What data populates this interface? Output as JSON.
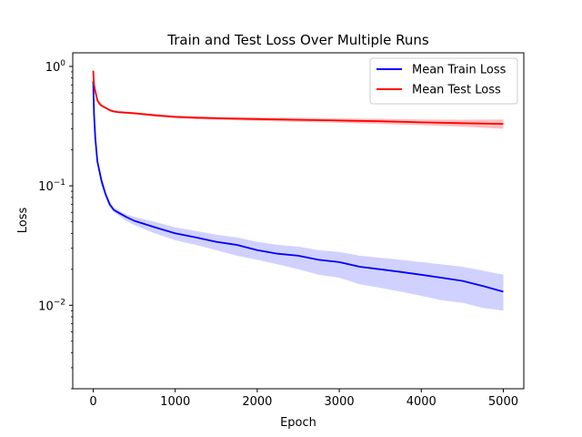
{
  "chart_data": {
    "type": "line",
    "title": "Train and Test Loss Over Multiple Runs",
    "xlabel": "Epoch",
    "ylabel": "Loss",
    "xlim": [
      -250,
      5250
    ],
    "ylim": [
      0.002,
      1.3
    ],
    "yscale": "log",
    "grid": false,
    "legend_position": "top-right",
    "x_ticks": [
      0,
      1000,
      2000,
      3000,
      4000,
      5000
    ],
    "y_ticks": [
      {
        "value": 0.01,
        "label": "10",
        "exp": "−2"
      },
      {
        "value": 0.1,
        "label": "10",
        "exp": "−1"
      },
      {
        "value": 1,
        "label": "10",
        "exp": "0"
      }
    ],
    "series": [
      {
        "name": "Mean Train Loss",
        "color": "#0000ff",
        "x": [
          0,
          10,
          25,
          50,
          100,
          150,
          200,
          250,
          300,
          400,
          500,
          750,
          1000,
          1250,
          1500,
          1750,
          2000,
          2250,
          2500,
          2750,
          3000,
          3250,
          3500,
          3750,
          4000,
          4250,
          4500,
          4750,
          5000
        ],
        "y": [
          0.75,
          0.4,
          0.25,
          0.16,
          0.11,
          0.085,
          0.07,
          0.063,
          0.06,
          0.055,
          0.051,
          0.045,
          0.04,
          0.037,
          0.034,
          0.032,
          0.029,
          0.027,
          0.026,
          0.024,
          0.023,
          0.021,
          0.02,
          0.019,
          0.018,
          0.017,
          0.016,
          0.0145,
          0.013
        ],
        "band_lower": [
          0.7,
          0.37,
          0.23,
          0.15,
          0.1,
          0.08,
          0.066,
          0.06,
          0.057,
          0.051,
          0.047,
          0.04,
          0.035,
          0.032,
          0.029,
          0.026,
          0.024,
          0.022,
          0.02,
          0.018,
          0.017,
          0.015,
          0.014,
          0.013,
          0.012,
          0.011,
          0.0105,
          0.0095,
          0.009
        ],
        "band_upper": [
          0.8,
          0.43,
          0.27,
          0.17,
          0.12,
          0.09,
          0.074,
          0.066,
          0.063,
          0.058,
          0.055,
          0.05,
          0.045,
          0.042,
          0.039,
          0.037,
          0.034,
          0.032,
          0.031,
          0.029,
          0.028,
          0.026,
          0.025,
          0.024,
          0.023,
          0.022,
          0.021,
          0.0195,
          0.018
        ]
      },
      {
        "name": "Mean Test Loss",
        "color": "#ff0000",
        "x": [
          0,
          10,
          25,
          50,
          75,
          100,
          150,
          200,
          250,
          300,
          500,
          750,
          1000,
          1250,
          1500,
          2000,
          2500,
          3000,
          3500,
          4000,
          4500,
          5000
        ],
        "y": [
          0.92,
          0.7,
          0.62,
          0.52,
          0.49,
          0.47,
          0.45,
          0.43,
          0.42,
          0.415,
          0.405,
          0.39,
          0.378,
          0.372,
          0.368,
          0.362,
          0.357,
          0.352,
          0.347,
          0.34,
          0.335,
          0.33
        ],
        "band_lower": [
          0.85,
          0.66,
          0.59,
          0.5,
          0.47,
          0.455,
          0.44,
          0.42,
          0.41,
          0.405,
          0.395,
          0.38,
          0.368,
          0.362,
          0.357,
          0.35,
          0.343,
          0.337,
          0.33,
          0.322,
          0.313,
          0.3
        ],
        "band_upper": [
          1.0,
          0.74,
          0.65,
          0.54,
          0.51,
          0.485,
          0.46,
          0.44,
          0.43,
          0.425,
          0.415,
          0.4,
          0.388,
          0.382,
          0.379,
          0.374,
          0.371,
          0.367,
          0.364,
          0.359,
          0.358,
          0.36
        ]
      }
    ]
  }
}
